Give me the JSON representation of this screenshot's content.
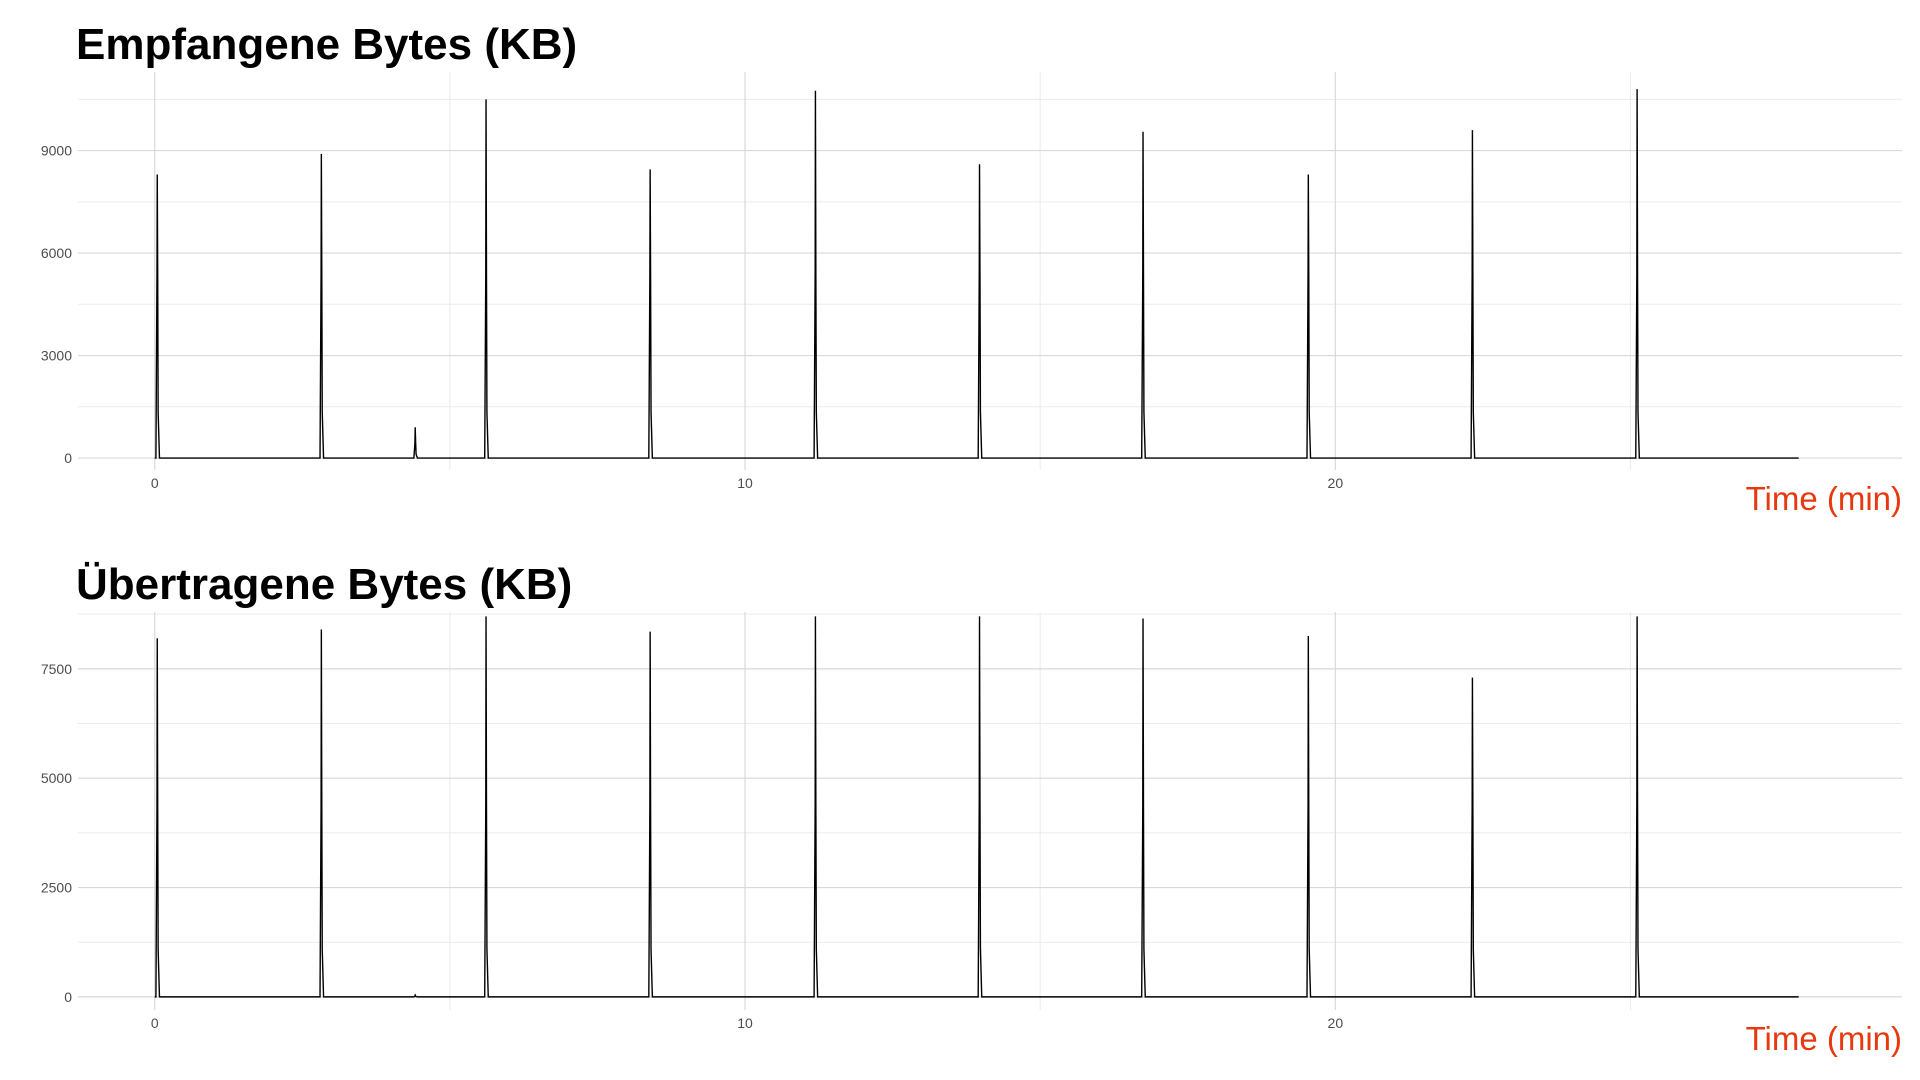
{
  "chart_data": [
    {
      "type": "line",
      "title": "Empfangene Bytes (KB)",
      "xlabel": "Time (min)",
      "ylabel": "",
      "xlim": [
        -1.3,
        29.6
      ],
      "ylim": [
        -350,
        11300
      ],
      "x_ticks": [
        0,
        10,
        20
      ],
      "y_ticks": [
        0,
        3000,
        6000,
        9000
      ],
      "x_end": 27.85,
      "grid": true,
      "line_color": "#000000",
      "spikes": [
        {
          "x": 0.05,
          "peak": 8300,
          "shoulder": 5400
        },
        {
          "x": 2.83,
          "peak": 8900,
          "shoulder": 5400
        },
        {
          "x": 4.42,
          "peak": 900,
          "shoulder": 450
        },
        {
          "x": 5.62,
          "peak": 10500,
          "shoulder": 5400
        },
        {
          "x": 8.4,
          "peak": 8450,
          "shoulder": 5400
        },
        {
          "x": 11.2,
          "peak": 10750,
          "shoulder": 5400
        },
        {
          "x": 13.98,
          "peak": 8600,
          "shoulder": 5400
        },
        {
          "x": 16.75,
          "peak": 9550,
          "shoulder": 5400
        },
        {
          "x": 19.55,
          "peak": 8300,
          "shoulder": 5400
        },
        {
          "x": 22.33,
          "peak": 9600,
          "shoulder": 5400
        },
        {
          "x": 25.12,
          "peak": 10800,
          "shoulder": 5400
        }
      ]
    },
    {
      "type": "line",
      "title": "Übertragene Bytes (KB)",
      "xlabel": "Time (min)",
      "ylabel": "",
      "xlim": [
        -1.3,
        29.6
      ],
      "ylim": [
        -300,
        8800
      ],
      "x_ticks": [
        0,
        10,
        20
      ],
      "y_ticks": [
        0,
        2500,
        5000,
        7500
      ],
      "x_end": 27.85,
      "grid": true,
      "line_color": "#000000",
      "spikes": [
        {
          "x": 0.05,
          "peak": 8200,
          "shoulder": 4350
        },
        {
          "x": 2.83,
          "peak": 8400,
          "shoulder": 4350
        },
        {
          "x": 4.42,
          "peak": 40,
          "shoulder": 20
        },
        {
          "x": 5.62,
          "peak": 8700,
          "shoulder": 4400
        },
        {
          "x": 8.4,
          "peak": 8350,
          "shoulder": 4350
        },
        {
          "x": 11.2,
          "peak": 8700,
          "shoulder": 4400
        },
        {
          "x": 13.98,
          "peak": 8700,
          "shoulder": 4500
        },
        {
          "x": 16.75,
          "peak": 8650,
          "shoulder": 4350
        },
        {
          "x": 19.55,
          "peak": 8250,
          "shoulder": 4350
        },
        {
          "x": 22.33,
          "peak": 7300,
          "shoulder": 4350
        },
        {
          "x": 25.12,
          "peak": 8700,
          "shoulder": 4400
        }
      ]
    }
  ]
}
